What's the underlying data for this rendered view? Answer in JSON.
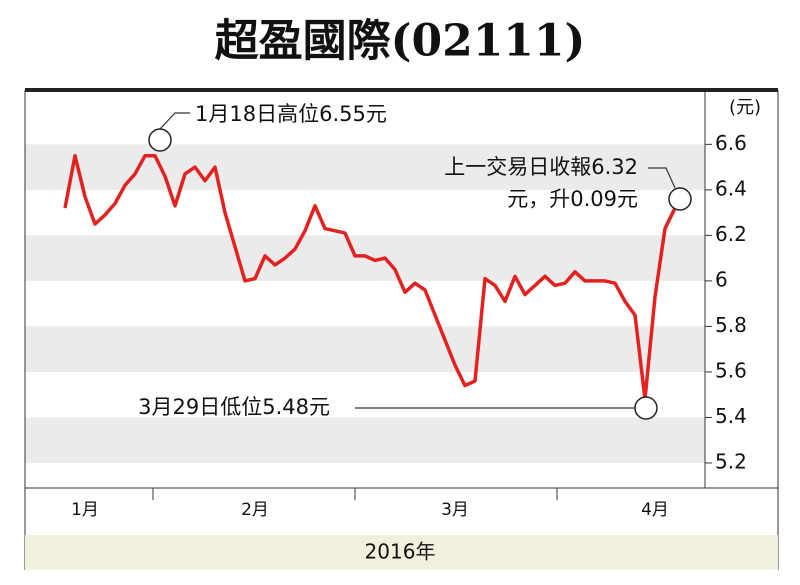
{
  "chart_data": {
    "type": "line",
    "title": "超盈國際(02111)",
    "x_label": "2016年",
    "y_unit": "(元)",
    "categories": [
      null,
      null,
      "1月",
      null,
      null,
      null,
      null,
      null,
      null,
      null,
      null,
      null,
      null,
      null,
      null,
      null,
      null,
      null,
      null,
      "2月",
      null,
      null,
      null,
      null,
      null,
      null,
      null,
      null,
      null,
      null,
      null,
      null,
      null,
      null,
      null,
      null,
      null,
      null,
      null,
      "3月",
      null,
      null,
      null,
      null,
      null,
      null,
      null,
      null,
      null,
      null,
      null,
      null,
      null,
      null,
      null,
      null,
      null,
      null,
      null,
      "4月",
      null,
      null
    ],
    "series": [
      {
        "color": "#e3211f",
        "values": [
          6.32,
          6.55,
          6.37,
          6.25,
          6.29,
          6.34,
          6.42,
          6.47,
          6.55,
          6.55,
          6.46,
          6.33,
          6.47,
          6.5,
          6.44,
          6.5,
          6.3,
          6.15,
          6.0,
          6.01,
          6.11,
          6.07,
          6.1,
          6.14,
          6.22,
          6.33,
          6.23,
          6.22,
          6.21,
          6.11,
          6.11,
          6.09,
          6.1,
          6.05,
          5.95,
          5.99,
          5.96,
          5.85,
          5.74,
          5.63,
          5.54,
          5.56,
          6.01,
          5.98,
          5.91,
          6.02,
          5.94,
          5.98,
          6.02,
          5.98,
          5.99,
          6.04,
          6.0,
          6.0,
          6.0,
          5.99,
          5.91,
          5.85,
          5.48,
          5.93,
          6.23,
          6.32
        ]
      }
    ],
    "ylim": [
      5.09,
      6.83
    ],
    "yticks": [
      6.6,
      6.4,
      6.2,
      6.0,
      5.8,
      5.6,
      5.4,
      5.2
    ],
    "annotations": [
      {
        "index": 9,
        "lines": [
          "1月18日高位6.55元"
        ]
      },
      {
        "index": 58,
        "lines": [
          "3月29日低位5.48元"
        ]
      },
      {
        "index": 61,
        "lines": [
          "上一交易日收報6.32",
          "元，升0.09元"
        ]
      }
    ]
  }
}
